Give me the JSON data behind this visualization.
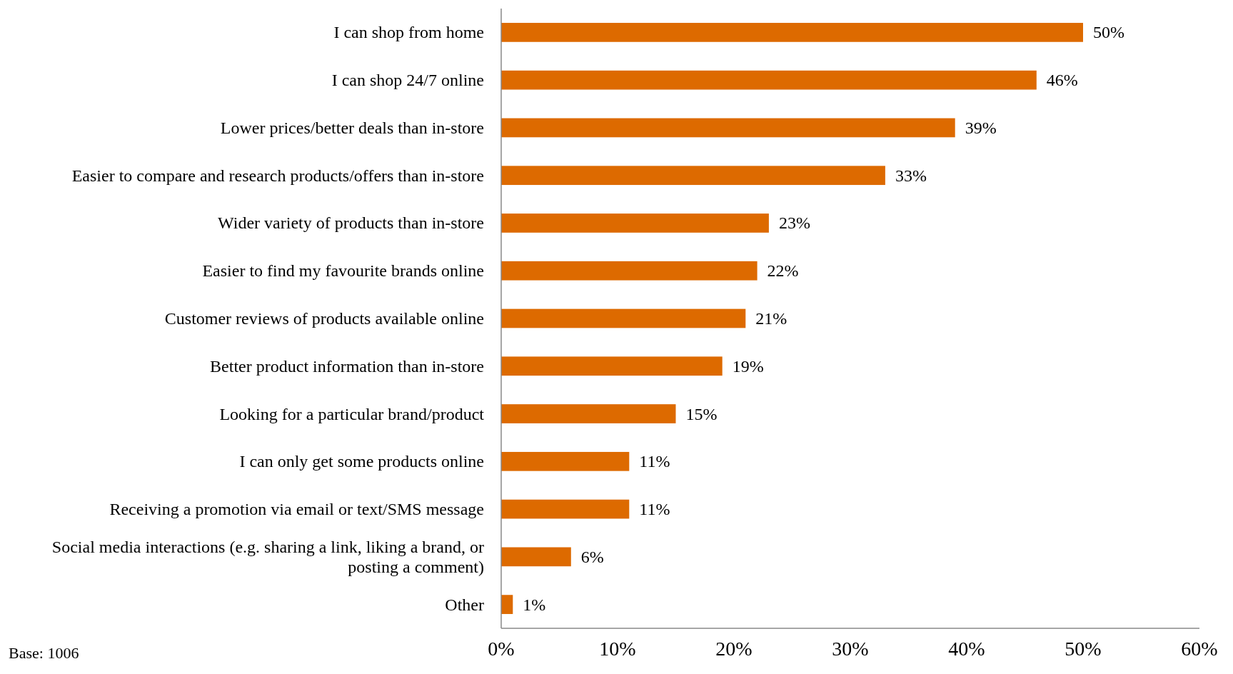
{
  "chart_data": {
    "type": "bar",
    "orientation": "horizontal",
    "categories": [
      "I can shop from home",
      "I can shop 24/7 online",
      "Lower prices/better deals than in-store",
      "Easier to compare and research products/offers than in-store",
      "Wider variety of products than in-store",
      "Easier to find my favourite brands online",
      "Customer reviews of products available online",
      "Better product information than in-store",
      "Looking for a particular brand/product",
      "I can only get some products online",
      "Receiving a promotion via email or text/SMS message",
      "Social media interactions (e.g. sharing a link, liking a brand, or posting a comment)",
      "Other"
    ],
    "values": [
      50,
      46,
      39,
      33,
      23,
      22,
      21,
      19,
      15,
      11,
      11,
      6,
      1
    ],
    "value_labels": [
      "50%",
      "46%",
      "39%",
      "33%",
      "23%",
      "22%",
      "21%",
      "19%",
      "15%",
      "11%",
      "11%",
      "6%",
      "1%"
    ],
    "color": "#dd6a00",
    "xlim": [
      0,
      60
    ],
    "xticks": [
      {
        "value": 0,
        "label": "0%"
      },
      {
        "value": 10,
        "label": "10%"
      },
      {
        "value": 20,
        "label": "20%"
      },
      {
        "value": 30,
        "label": "30%"
      },
      {
        "value": 40,
        "label": "40%"
      },
      {
        "value": 50,
        "label": "50%"
      },
      {
        "value": 60,
        "label": "60%"
      }
    ],
    "grid": false,
    "annotations": [
      "Base: 1006"
    ]
  }
}
